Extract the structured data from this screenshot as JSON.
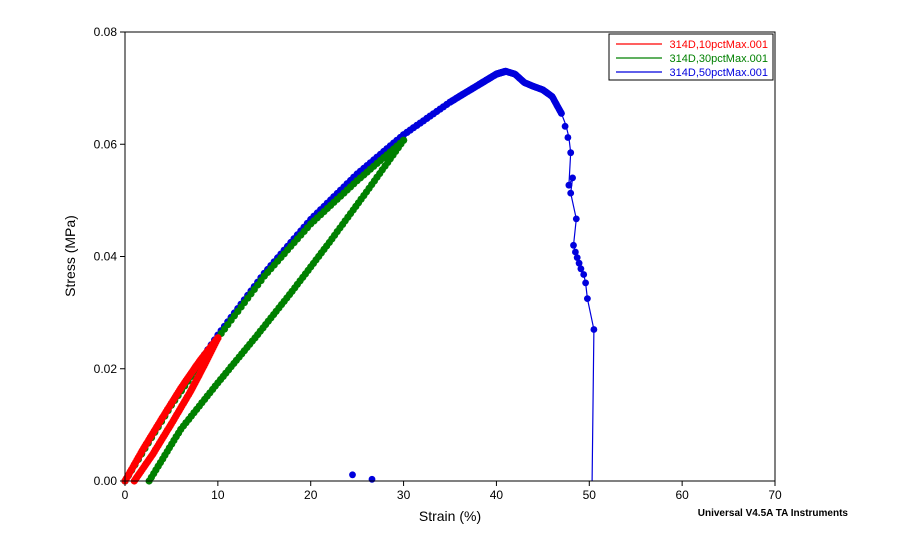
{
  "chart_data": {
    "type": "scatter",
    "xlabel": "Strain (%)",
    "ylabel": "Stress (MPa)",
    "xlim": [
      0,
      70
    ],
    "ylim": [
      0,
      0.08
    ],
    "xticks": [
      "0",
      "10",
      "20",
      "30",
      "40",
      "50",
      "60",
      "70"
    ],
    "yticks": [
      "0.00",
      "0.02",
      "0.04",
      "0.06",
      "0.08"
    ],
    "grid": false,
    "legend_position": "top-right",
    "footer": "Universal V4.5A TA Instruments",
    "series": [
      {
        "name": "314D,10pctMax.001",
        "color": "#ff0000",
        "loading": [
          [
            0,
            0
          ],
          [
            2,
            0.0058
          ],
          [
            4,
            0.0112
          ],
          [
            6,
            0.0165
          ],
          [
            8,
            0.0213
          ],
          [
            10,
            0.0255
          ]
        ],
        "unloading": [
          [
            10,
            0.0255
          ],
          [
            8.5,
            0.0205
          ],
          [
            7,
            0.0158
          ],
          [
            5,
            0.0102
          ],
          [
            3,
            0.0048
          ],
          [
            1.0,
            0
          ]
        ]
      },
      {
        "name": "314D,30pctMax.001",
        "color": "#008000",
        "loading": [
          [
            0,
            0
          ],
          [
            5,
            0.0135
          ],
          [
            10,
            0.0255
          ],
          [
            15,
            0.0365
          ],
          [
            20,
            0.0458
          ],
          [
            25,
            0.0535
          ],
          [
            30,
            0.0607
          ]
        ],
        "unloading": [
          [
            30,
            0.0607
          ],
          [
            26,
            0.0515
          ],
          [
            22,
            0.0425
          ],
          [
            18,
            0.0338
          ],
          [
            14,
            0.0255
          ],
          [
            10,
            0.0175
          ],
          [
            6,
            0.0092
          ],
          [
            2.6,
            0
          ]
        ]
      },
      {
        "name": "314D,50pctMax.001",
        "color": "#0000dd",
        "curve": [
          [
            0,
            0
          ],
          [
            5,
            0.0138
          ],
          [
            10,
            0.026
          ],
          [
            15,
            0.037
          ],
          [
            20,
            0.0466
          ],
          [
            25,
            0.0547
          ],
          [
            30,
            0.0617
          ],
          [
            35,
            0.0675
          ],
          [
            38,
            0.0705
          ],
          [
            40,
            0.0725
          ],
          [
            41,
            0.073
          ],
          [
            42,
            0.0725
          ],
          [
            43,
            0.071
          ],
          [
            44,
            0.0703
          ],
          [
            45,
            0.0697
          ],
          [
            46,
            0.0685
          ],
          [
            47,
            0.0655
          ],
          [
            47.5,
            0.0633
          ],
          [
            47.8,
            0.0612
          ],
          [
            48.0,
            0.0585
          ],
          [
            47.8,
            0.0527
          ],
          [
            48.2,
            0.054
          ],
          [
            48.0,
            0.0513
          ],
          [
            48.6,
            0.0467
          ],
          [
            48.3,
            0.042
          ],
          [
            48.5,
            0.0408
          ],
          [
            48.7,
            0.0398
          ],
          [
            48.9,
            0.0388
          ],
          [
            49.1,
            0.0378
          ],
          [
            49.4,
            0.0368
          ],
          [
            49.6,
            0.0353
          ],
          [
            49.8,
            0.0325
          ],
          [
            50.5,
            0.027
          ],
          [
            50.3,
            0
          ]
        ],
        "markers": [
          [
            47,
            0.0655
          ],
          [
            47.4,
            0.0632
          ],
          [
            47.7,
            0.0612
          ],
          [
            48.0,
            0.0585
          ],
          [
            47.8,
            0.0527
          ],
          [
            48.2,
            0.054
          ],
          [
            48.0,
            0.0513
          ],
          [
            48.6,
            0.0467
          ],
          [
            48.3,
            0.042
          ],
          [
            48.5,
            0.0408
          ],
          [
            48.7,
            0.0398
          ],
          [
            48.9,
            0.0388
          ],
          [
            49.1,
            0.0378
          ],
          [
            49.4,
            0.0368
          ],
          [
            49.6,
            0.0353
          ],
          [
            49.8,
            0.0325
          ],
          [
            50.5,
            0.027
          ],
          [
            24.5,
            0.0011
          ],
          [
            26.6,
            0.0003
          ]
        ]
      }
    ]
  }
}
